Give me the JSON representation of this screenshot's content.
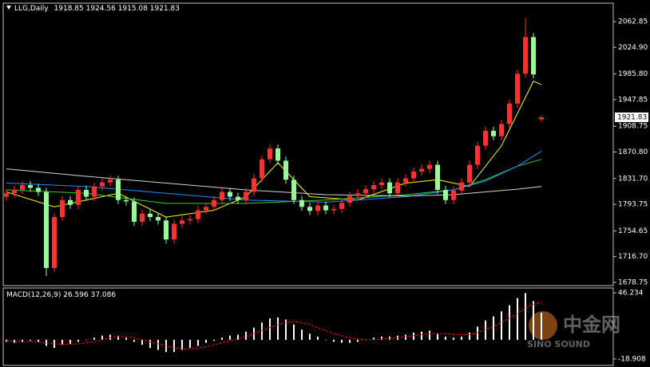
{
  "chart_data": [
    {
      "type": "candlestick",
      "symbol": "LLG,Daily",
      "up_color": "#ff3030",
      "down_color": "#98fb98",
      "open": [
        1805,
        1810,
        1815,
        1822,
        1818,
        1812,
        1700,
        1775,
        1800,
        1793,
        1815,
        1805,
        1820,
        1826,
        1830,
        1800,
        1798,
        1768,
        1780,
        1775,
        1770,
        1742,
        1765,
        1770,
        1772,
        1785,
        1790,
        1800,
        1812,
        1805,
        1800,
        1812,
        1832,
        1860,
        1876,
        1858,
        1830,
        1800,
        1790,
        1784,
        1792,
        1785,
        1787,
        1796,
        1806,
        1810,
        1816,
        1822,
        1826,
        1810,
        1826,
        1832,
        1842,
        1846,
        1852,
        1815,
        1800,
        1814,
        1826,
        1852,
        1880,
        1902,
        1894,
        1912,
        1942,
        1986,
        2040,
        1918.85
      ],
      "high": [
        1816,
        1821,
        1828,
        1828,
        1824,
        1818,
        1781,
        1806,
        1806,
        1821,
        1821,
        1826,
        1832,
        1836,
        1836,
        1806,
        1804,
        1786,
        1786,
        1781,
        1776,
        1771,
        1776,
        1778,
        1791,
        1796,
        1806,
        1818,
        1818,
        1811,
        1818,
        1838,
        1866,
        1882,
        1882,
        1864,
        1836,
        1806,
        1796,
        1798,
        1798,
        1793,
        1802,
        1812,
        1816,
        1822,
        1828,
        1832,
        1832,
        1832,
        1838,
        1848,
        1852,
        1858,
        1858,
        1821,
        1820,
        1832,
        1858,
        1886,
        1908,
        1908,
        1918,
        1948,
        1992,
        2068,
        2046,
        1924.56
      ],
      "low": [
        1799,
        1804,
        1809,
        1812,
        1806,
        1688,
        1694,
        1769,
        1787,
        1787,
        1799,
        1799,
        1814,
        1820,
        1794,
        1792,
        1762,
        1762,
        1769,
        1764,
        1736,
        1736,
        1759,
        1764,
        1766,
        1779,
        1784,
        1794,
        1799,
        1794,
        1794,
        1806,
        1826,
        1854,
        1852,
        1824,
        1794,
        1784,
        1778,
        1778,
        1779,
        1779,
        1781,
        1790,
        1800,
        1804,
        1810,
        1816,
        1804,
        1804,
        1820,
        1826,
        1836,
        1840,
        1809,
        1794,
        1794,
        1808,
        1820,
        1846,
        1874,
        1888,
        1888,
        1906,
        1936,
        1980,
        1979,
        1915.08
      ],
      "close": [
        1810,
        1815,
        1822,
        1818,
        1812,
        1700,
        1775,
        1800,
        1793,
        1815,
        1805,
        1820,
        1826,
        1830,
        1800,
        1798,
        1768,
        1780,
        1775,
        1770,
        1742,
        1765,
        1770,
        1772,
        1785,
        1790,
        1800,
        1812,
        1805,
        1800,
        1812,
        1832,
        1860,
        1876,
        1858,
        1830,
        1800,
        1790,
        1784,
        1792,
        1785,
        1787,
        1796,
        1806,
        1810,
        1816,
        1822,
        1826,
        1810,
        1826,
        1832,
        1842,
        1846,
        1852,
        1815,
        1800,
        1814,
        1826,
        1852,
        1880,
        1902,
        1894,
        1912,
        1942,
        1986,
        2040,
        1985,
        1921.83
      ],
      "series": [
        {
          "color": "#ffff00",
          "x": [
            0,
            6,
            10,
            14,
            20,
            26,
            30,
            34,
            38,
            44,
            50,
            54,
            58,
            62,
            66,
            67
          ],
          "values": [
            1812,
            1790,
            1800,
            1810,
            1775,
            1785,
            1805,
            1855,
            1805,
            1800,
            1825,
            1830,
            1820,
            1880,
            1975,
            1970
          ]
        },
        {
          "color": "#32cd32",
          "x": [
            0,
            10,
            20,
            30,
            40,
            50,
            56,
            60,
            64,
            67
          ],
          "values": [
            1815,
            1810,
            1795,
            1795,
            1800,
            1808,
            1815,
            1830,
            1850,
            1860
          ]
        },
        {
          "color": "#1e90ff",
          "x": [
            0,
            10,
            20,
            30,
            40,
            50,
            56,
            60,
            64,
            67
          ],
          "values": [
            1825,
            1820,
            1810,
            1800,
            1797,
            1805,
            1815,
            1828,
            1850,
            1872
          ]
        },
        {
          "color": "#d3d3d3",
          "x": [
            0,
            10,
            20,
            30,
            40,
            50,
            56,
            60,
            64,
            67
          ],
          "values": [
            1846,
            1835,
            1825,
            1815,
            1808,
            1806,
            1808,
            1812,
            1816,
            1820
          ]
        }
      ],
      "ylim": [
        1674.05,
        2089.87
      ],
      "yticks": [
        2062.85,
        {
          "value": 2024.9,
          "label": "2024.90"
        },
        {
          "value": 1985.8,
          "label": "1985.80"
        },
        1947.85,
        1908.75,
        {
          "value": 1870.8,
          "label": "1870.80"
        },
        {
          "value": 1831.7,
          "label": "1831.70"
        },
        1793.75,
        1754.65,
        {
          "value": 1716.7,
          "label": "1716.70"
        },
        1678.75
      ]
    },
    {
      "type": "macd",
      "title": "MACD(12,26,9)",
      "hist_color": "#ffffff",
      "signal_color": "#ff0000",
      "values": [
        -2,
        -3,
        -2,
        -1,
        -2,
        -6,
        -8,
        -5,
        -4,
        -2,
        0,
        2,
        4,
        5,
        4,
        2,
        -2,
        -5,
        -8,
        -10,
        -12,
        -12,
        -10,
        -8,
        -6,
        -3,
        -1,
        2,
        4,
        5,
        8,
        12,
        17,
        21,
        22,
        20,
        15,
        10,
        6,
        3,
        0,
        -2,
        -3,
        -3,
        -2,
        0,
        2,
        3,
        3,
        4,
        5,
        7,
        8,
        9,
        6,
        3,
        2,
        3,
        7,
        13,
        19,
        23,
        28,
        34,
        41,
        46,
        38,
        26.596
      ],
      "signal": [
        -1,
        -1.5,
        -2,
        -2,
        -2,
        -3,
        -4,
        -4.5,
        -4.5,
        -4,
        -3,
        -2,
        0,
        2,
        3,
        3,
        2,
        0,
        -2,
        -4,
        -6,
        -8,
        -9,
        -9,
        -8,
        -7,
        -5,
        -3,
        -1,
        1,
        3,
        6,
        9,
        12,
        15,
        17,
        18,
        17,
        15,
        12,
        9,
        6,
        4,
        2,
        1,
        0,
        0,
        1,
        1,
        2,
        3,
        4,
        5,
        6,
        6,
        6,
        5,
        5,
        5,
        7,
        10,
        13,
        17,
        21,
        26,
        31,
        35,
        37.086
      ],
      "ylim": [
        -25.26,
        51.0
      ],
      "yticks": [
        46.234,
        -18.908
      ]
    }
  ],
  "watermark": {
    "brand": "中金网",
    "brand_en": "SINO SOUND"
  }
}
